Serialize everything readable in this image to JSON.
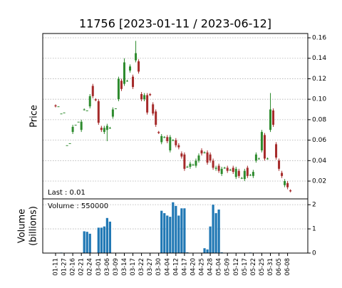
{
  "chart_data": {
    "type": "candlestick",
    "title": "11756   [2023-01-11 / 2023-06-12]",
    "ylabel": "Price",
    "volume_ylabel": [
      "Volume",
      "(billions)"
    ],
    "annotations": [
      "Last : 0.01",
      "Volume : 550000"
    ],
    "categories": [
      "01-11",
      null,
      null,
      "01-27",
      null,
      null,
      "02-16",
      null,
      null,
      "02-21",
      null,
      null,
      "02-24",
      null,
      null,
      "03-01",
      null,
      null,
      "03-06",
      null,
      null,
      "03-09",
      null,
      null,
      "03-14",
      null,
      null,
      "03-17",
      null,
      null,
      "03-22",
      null,
      null,
      "03-27",
      null,
      null,
      "03-30",
      null,
      null,
      "04-04",
      null,
      null,
      "04-12",
      null,
      null,
      "04-17",
      null,
      null,
      "04-20",
      null,
      null,
      "04-25",
      null,
      null,
      "04-28",
      null,
      null,
      "05-04",
      null,
      null,
      "05-09",
      null,
      null,
      "05-12",
      null,
      null,
      "05-17",
      null,
      null,
      "05-22",
      null,
      null,
      "05-25",
      null,
      null,
      "05-31",
      null,
      null,
      "06-05",
      null,
      null,
      "06-08",
      null
    ],
    "open": [
      0.094,
      0.093,
      0.086,
      0.087,
      0.055,
      0.057,
      0.068,
      0.075,
      0.078,
      0.07,
      0.09,
      0.089,
      0.093,
      0.113,
      0.1,
      0.098,
      0.072,
      0.068,
      0.07,
      0.072,
      0.083,
      0.091,
      0.1,
      0.118,
      0.115,
      0.118,
      0.128,
      0.122,
      0.138,
      0.137,
      0.105,
      0.1,
      0.104,
      0.105,
      0.095,
      0.088,
      0.068,
      0.058,
      0.063,
      0.063,
      0.05,
      0.06,
      0.06,
      0.055,
      0.047,
      0.046,
      0.034,
      0.034,
      0.036,
      0.035,
      0.04,
      0.05,
      0.048,
      0.048,
      0.046,
      0.04,
      0.032,
      0.035,
      0.027,
      0.033,
      0.033,
      0.031,
      0.033,
      0.024,
      0.03,
      0.023,
      0.022,
      0.033,
      0.026,
      0.025,
      0.04,
      0.042,
      0.05,
      0.065,
      0.042,
      0.07,
      0.089,
      0.056,
      0.04,
      0.028,
      0.016,
      0.018,
      0.011
    ],
    "high": [
      0.095,
      0.093,
      0.086,
      0.087,
      0.055,
      0.057,
      0.075,
      0.075,
      0.078,
      0.08,
      0.091,
      0.089,
      0.105,
      0.115,
      0.101,
      0.1,
      0.074,
      0.074,
      0.076,
      0.073,
      0.092,
      0.091,
      0.122,
      0.12,
      0.14,
      0.119,
      0.134,
      0.124,
      0.157,
      0.139,
      0.107,
      0.106,
      0.106,
      0.106,
      0.097,
      0.09,
      0.069,
      0.066,
      0.064,
      0.065,
      0.065,
      0.061,
      0.062,
      0.057,
      0.049,
      0.048,
      0.035,
      0.039,
      0.037,
      0.042,
      0.047,
      0.052,
      0.049,
      0.05,
      0.048,
      0.042,
      0.035,
      0.037,
      0.034,
      0.034,
      0.035,
      0.032,
      0.035,
      0.034,
      0.032,
      0.024,
      0.032,
      0.035,
      0.027,
      0.031,
      0.048,
      0.043,
      0.07,
      0.067,
      0.043,
      0.106,
      0.091,
      0.058,
      0.042,
      0.03,
      0.022,
      0.02,
      0.012
    ],
    "low": [
      0.092,
      0.093,
      0.086,
      0.087,
      0.055,
      0.057,
      0.066,
      0.075,
      0.078,
      0.068,
      0.089,
      0.089,
      0.091,
      0.101,
      0.098,
      0.075,
      0.068,
      0.066,
      0.059,
      0.071,
      0.081,
      0.091,
      0.098,
      0.108,
      0.113,
      0.117,
      0.126,
      0.11,
      0.136,
      0.125,
      0.098,
      0.098,
      0.085,
      0.103,
      0.084,
      0.073,
      0.066,
      0.056,
      0.062,
      0.057,
      0.048,
      0.059,
      0.053,
      0.051,
      0.042,
      0.03,
      0.033,
      0.032,
      0.035,
      0.033,
      0.038,
      0.045,
      0.047,
      0.036,
      0.038,
      0.031,
      0.03,
      0.028,
      0.025,
      0.032,
      0.028,
      0.03,
      0.027,
      0.022,
      0.023,
      0.022,
      0.02,
      0.023,
      0.025,
      0.023,
      0.038,
      0.041,
      0.048,
      0.04,
      0.041,
      0.068,
      0.073,
      0.041,
      0.03,
      0.023,
      0.014,
      0.012,
      0.009
    ],
    "close": [
      0.093,
      0.093,
      0.086,
      0.087,
      0.055,
      0.057,
      0.073,
      0.075,
      0.078,
      0.078,
      0.09,
      0.089,
      0.103,
      0.103,
      0.099,
      0.077,
      0.07,
      0.072,
      0.074,
      0.072,
      0.09,
      0.091,
      0.12,
      0.11,
      0.136,
      0.118,
      0.132,
      0.112,
      0.145,
      0.127,
      0.1,
      0.104,
      0.087,
      0.104,
      0.086,
      0.075,
      0.067,
      0.064,
      0.063,
      0.059,
      0.063,
      0.06,
      0.055,
      0.053,
      0.044,
      0.032,
      0.034,
      0.037,
      0.036,
      0.04,
      0.045,
      0.047,
      0.048,
      0.038,
      0.04,
      0.033,
      0.033,
      0.03,
      0.032,
      0.033,
      0.03,
      0.031,
      0.029,
      0.032,
      0.025,
      0.023,
      0.03,
      0.025,
      0.026,
      0.029,
      0.046,
      0.042,
      0.068,
      0.042,
      0.042,
      0.09,
      0.075,
      0.043,
      0.032,
      0.025,
      0.02,
      0.014,
      0.01
    ],
    "volume": [
      0,
      0,
      0.02,
      0,
      0,
      0,
      0,
      0,
      0,
      0,
      0.9,
      0.88,
      0.8,
      0,
      0,
      1.05,
      1.05,
      1.1,
      1.45,
      1.3,
      0,
      0,
      0,
      0,
      0,
      0,
      0,
      0,
      0,
      0,
      0,
      0,
      0,
      0,
      0,
      0,
      0,
      1.75,
      1.65,
      1.55,
      1.5,
      2.1,
      1.95,
      1.55,
      1.85,
      1.85,
      0.03,
      0,
      0,
      0,
      0,
      0,
      0.2,
      0.15,
      1.1,
      2.0,
      1.65,
      1.8,
      0.03,
      0,
      0,
      0,
      0,
      0,
      0,
      0,
      0,
      0,
      0.02,
      0,
      0,
      0,
      0,
      0,
      0,
      0,
      0,
      0,
      0,
      0,
      0,
      0,
      0
    ],
    "up_color": "#2e8b2e",
    "down_color": "#a52a2a",
    "volume_color": "#1f77b4",
    "ylim": [
      0.0026,
      0.1642
    ],
    "yticks": [
      0.02,
      0.04,
      0.06,
      0.08,
      {
        "value": 0.1,
        "label": "0.10"
      },
      0.12,
      0.14,
      0.16
    ],
    "volume_ylim": [
      0,
      2.24
    ],
    "volume_yticks": [
      0,
      1,
      2
    ],
    "grid": true
  }
}
